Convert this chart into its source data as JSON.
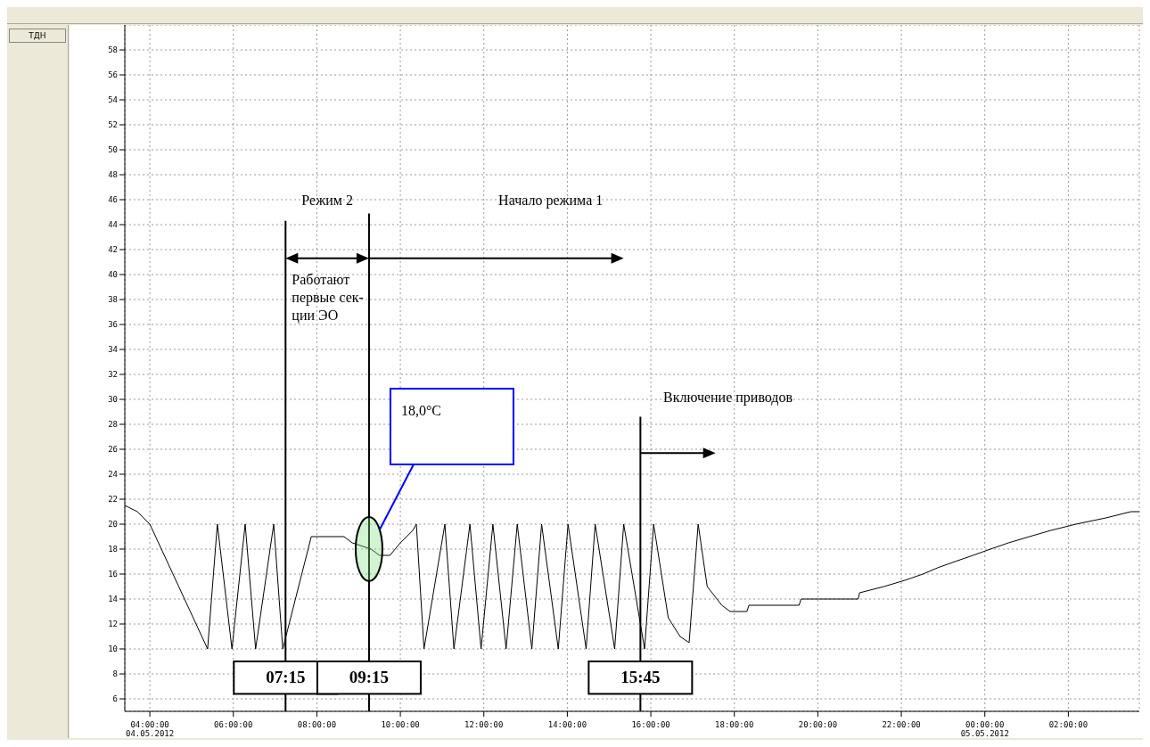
{
  "chart_data": {
    "type": "line",
    "x": [
      "2012-05-04T03:24",
      "2012-05-04T03:42",
      "2012-05-04T04:00",
      "2012-05-04T05:23",
      "2012-05-04T05:37",
      "2012-05-04T05:58",
      "2012-05-04T06:17",
      "2012-05-04T06:32",
      "2012-05-04T06:58",
      "2012-05-04T07:11",
      "2012-05-04T07:52",
      "2012-05-04T08:39",
      "2012-05-04T08:51",
      "2012-05-04T09:18",
      "2012-05-04T09:30",
      "2012-05-04T09:45",
      "2012-05-04T10:00",
      "2012-05-04T10:18",
      "2012-05-04T10:23",
      "2012-05-04T10:34",
      "2012-05-04T11:04",
      "2012-05-04T11:17",
      "2012-05-04T11:40",
      "2012-05-04T11:56",
      "2012-05-04T12:13",
      "2012-05-04T12:32",
      "2012-05-04T12:48",
      "2012-05-04T13:09",
      "2012-05-04T13:23",
      "2012-05-04T13:47",
      "2012-05-04T14:01",
      "2012-05-04T14:27",
      "2012-05-04T14:40",
      "2012-05-04T15:08",
      "2012-05-04T15:21",
      "2012-05-04T15:51",
      "2012-05-04T16:04",
      "2012-05-04T16:25",
      "2012-05-04T16:42",
      "2012-05-04T16:55",
      "2012-05-04T17:08",
      "2012-05-04T17:21",
      "2012-05-04T17:42",
      "2012-05-04T17:54",
      "2012-05-04T18:18",
      "2012-05-04T18:21",
      "2012-05-04T19:33",
      "2012-05-04T19:36",
      "2012-05-04T20:58",
      "2012-05-04T21:00",
      "2012-05-04T21:35",
      "2012-05-04T22:05",
      "2012-05-04T22:31",
      "2012-05-04T22:52",
      "2012-05-04T23:17",
      "2012-05-04T23:43",
      "2012-05-05T00:08",
      "2012-05-05T00:34",
      "2012-05-05T01:04",
      "2012-05-05T01:35",
      "2012-05-05T02:11",
      "2012-05-05T02:54",
      "2012-05-05T03:30",
      "2012-05-05T03:42"
    ],
    "series": [
      {
        "color": "#000000",
        "values": [
          21.5,
          21,
          20,
          10,
          20,
          10,
          20,
          10,
          20,
          10,
          19,
          19,
          18.5,
          18,
          17.5,
          17.5,
          18.5,
          19.5,
          20,
          10,
          20,
          10,
          20,
          10,
          20,
          10,
          20,
          10,
          20,
          10,
          20,
          10,
          20,
          10,
          20,
          10,
          20,
          12.5,
          11,
          10.5,
          20,
          15,
          13.5,
          13,
          13,
          13.5,
          13.5,
          14,
          14,
          14.5,
          15,
          15.5,
          16,
          16.5,
          17,
          17.5,
          18,
          18.5,
          19,
          19.5,
          20,
          20.5,
          21,
          21
        ]
      }
    ],
    "xlim": [
      "2012-05-04T03:24",
      "2012-05-05T03:42"
    ],
    "xticks": [
      {
        "value": "2012-05-04T04:00",
        "label": "04:00:00\n04.05.2012"
      },
      {
        "value": "2012-05-04T06:00",
        "label": "06:00:00"
      },
      {
        "value": "2012-05-04T08:00",
        "label": "08:00:00"
      },
      {
        "value": "2012-05-04T10:00",
        "label": "10:00:00"
      },
      {
        "value": "2012-05-04T12:00",
        "label": "12:00:00"
      },
      {
        "value": "2012-05-04T14:00",
        "label": "14:00:00"
      },
      {
        "value": "2012-05-04T16:00",
        "label": "16:00:00"
      },
      {
        "value": "2012-05-04T18:00",
        "label": "18:00:00"
      },
      {
        "value": "2012-05-04T20:00",
        "label": "20:00:00"
      },
      {
        "value": "2012-05-04T22:00",
        "label": "22:00:00"
      },
      {
        "value": "2012-05-05T00:00",
        "label": "00:00:00\n05.05.2012"
      },
      {
        "value": "2012-05-05T02:00",
        "label": "02:00:00"
      }
    ],
    "ylim": [
      5,
      60
    ],
    "yticks": [
      6,
      8,
      10,
      12,
      14,
      16,
      18,
      20,
      22,
      24,
      26,
      28,
      30,
      32,
      34,
      36,
      38,
      40,
      42,
      44,
      46,
      48,
      50,
      52,
      54,
      56,
      58
    ],
    "grid": true,
    "ref_lines": [
      {
        "axis": "x",
        "value": "2012-05-04T07:15",
        "label": "07:15",
        "color": "#000000"
      },
      {
        "axis": "x",
        "value": "2012-05-04T09:15",
        "label": "09:15",
        "color": "#000000"
      },
      {
        "axis": "x",
        "value": "2012-05-04T15:45",
        "label": "15:45",
        "color": "#000000"
      }
    ],
    "annotations": [
      "Режим 2",
      "Начало режима 1",
      "Работают\nпервые сек-\nции ЭО",
      "18,0°C",
      "Включение приводов",
      "ТДН"
    ]
  }
}
